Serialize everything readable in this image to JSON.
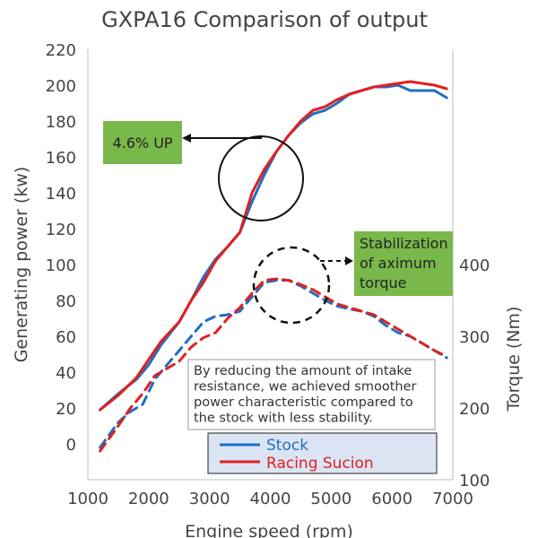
{
  "chart_data": {
    "type": "line",
    "title": "GXPA16 Comparison of output",
    "xlabel": "Engine speed (rpm)",
    "ylabel_left": "Generating power (kw)",
    "ylabel_right": "Torque (Nm)",
    "xlim": [
      1000,
      7000
    ],
    "ylim_left": [
      0,
      220
    ],
    "ylim_right": [
      100,
      500
    ],
    "x_ticks": [
      "1000",
      "2000",
      "3000",
      "4000",
      "5000",
      "6000",
      "7000"
    ],
    "y_ticks_left": [
      "0",
      "20",
      "40",
      "60",
      "80",
      "100",
      "120",
      "140",
      "160",
      "180",
      "200",
      "220"
    ],
    "y_ticks_right": [
      "100",
      "200",
      "300",
      "400"
    ],
    "grid": false,
    "legend_position": "bottom-center",
    "series": [
      {
        "name": "Stock",
        "color": "#1f6fc0",
        "axis": "left",
        "style": "solid",
        "quantity": "power",
        "x": [
          1200,
          1500,
          1800,
          2000,
          2200,
          2500,
          2700,
          2900,
          3100,
          3300,
          3500,
          3700,
          3900,
          4100,
          4300,
          4500,
          4700,
          4900,
          5100,
          5300,
          5500,
          5700,
          5900,
          6100,
          6300,
          6500,
          6700,
          6900
        ],
        "values": [
          19,
          28,
          36,
          44,
          55,
          68,
          80,
          93,
          103,
          110,
          118,
          135,
          150,
          163,
          172,
          179,
          184,
          186,
          190,
          195,
          197,
          199,
          199,
          200,
          197,
          197,
          197,
          193
        ]
      },
      {
        "name": "Racing Sucion",
        "color": "#e02020",
        "axis": "left",
        "style": "solid",
        "quantity": "power",
        "x": [
          1200,
          1500,
          1800,
          2000,
          2200,
          2500,
          2700,
          2900,
          3100,
          3300,
          3500,
          3700,
          3900,
          4100,
          4300,
          4500,
          4700,
          4900,
          5100,
          5300,
          5500,
          5700,
          5900,
          6100,
          6300,
          6500,
          6700,
          6900
        ],
        "values": [
          19,
          27,
          37,
          47,
          57,
          68,
          80,
          90,
          102,
          110,
          118,
          140,
          153,
          163,
          172,
          180,
          186,
          188,
          192,
          195,
          197,
          199,
          200,
          201,
          202,
          201,
          200,
          198
        ]
      },
      {
        "name": "Stock",
        "color": "#1f6fc0",
        "axis": "right",
        "style": "dashed",
        "quantity": "torque",
        "x": [
          1200,
          1500,
          1700,
          1900,
          2100,
          2300,
          2500,
          2700,
          2900,
          3100,
          3300,
          3500,
          3700,
          3900,
          4100,
          4300,
          4500,
          4700,
          4900,
          5100,
          5300,
          5500,
          5700,
          5900,
          6100,
          6300,
          6500,
          6700,
          6900
        ],
        "values": [
          145,
          180,
          195,
          205,
          240,
          260,
          280,
          300,
          320,
          328,
          330,
          335,
          355,
          375,
          378,
          378,
          370,
          360,
          350,
          342,
          338,
          335,
          328,
          315,
          305,
          300,
          290,
          280,
          270
        ]
      },
      {
        "name": "Racing Sucion",
        "color": "#e02020",
        "axis": "right",
        "style": "dashed",
        "quantity": "torque",
        "x": [
          1200,
          1500,
          1700,
          1900,
          2100,
          2300,
          2500,
          2700,
          2900,
          3100,
          3300,
          3500,
          3700,
          3900,
          4100,
          4300,
          4500,
          4700,
          4900,
          5100,
          5300,
          5500,
          5700,
          5900,
          6100,
          6300,
          6500,
          6700,
          6900
        ],
        "values": [
          140,
          175,
          200,
          220,
          245,
          255,
          265,
          285,
          298,
          305,
          325,
          340,
          360,
          378,
          380,
          378,
          372,
          365,
          355,
          345,
          340,
          335,
          330,
          320,
          310,
          300,
          290,
          280,
          272
        ]
      }
    ],
    "annotations": [
      {
        "name": "power-gain-note",
        "text": "4.6% UP",
        "box_color": "#79b84a"
      },
      {
        "name": "torque-note",
        "lines": [
          "Stabilization",
          "of aximum",
          "torque"
        ],
        "box_color": "#79b84a"
      },
      {
        "name": "description",
        "lines": [
          "By reducing the amount of intake",
          "resistance, we achieved smoother",
          "power characteristic compared to",
          "the stock with less stability."
        ]
      }
    ],
    "legend": {
      "box_color": "#dbe4f3",
      "items": [
        {
          "label": "Stock",
          "color": "#1f6fc0"
        },
        {
          "label": "Racing Sucion",
          "color": "#e02020"
        }
      ]
    }
  }
}
